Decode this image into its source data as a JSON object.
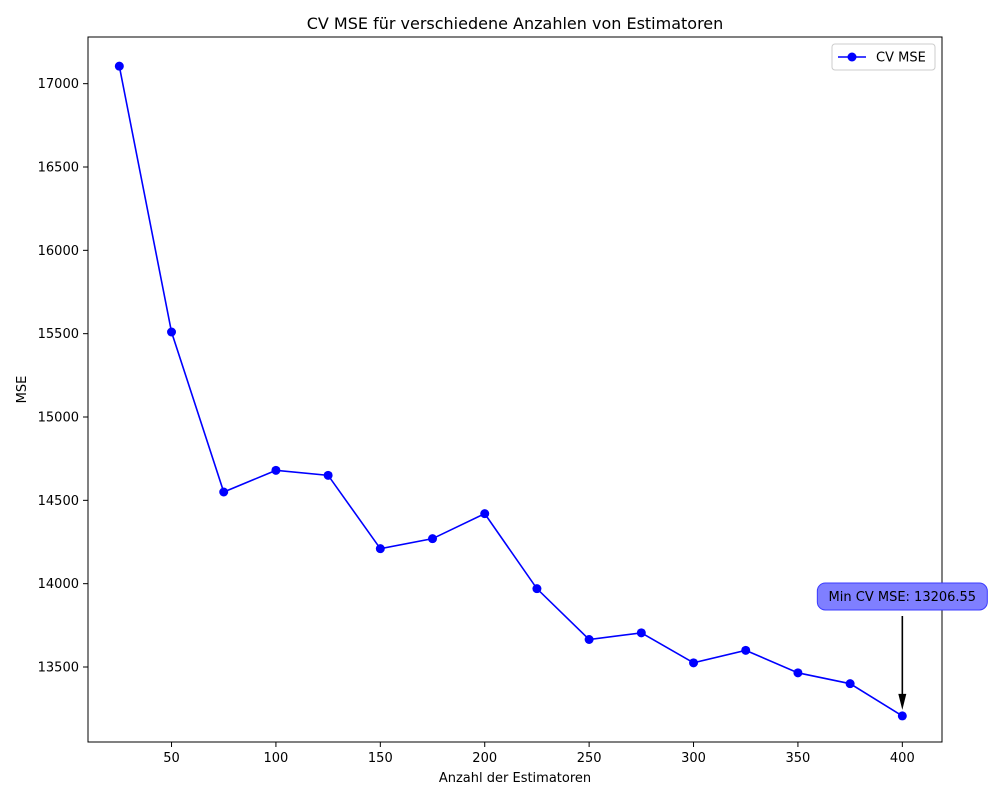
{
  "chart_data": {
    "type": "line",
    "title": "CV MSE für verschiedene Anzahlen von Estimatoren",
    "xlabel": "Anzahl der Estimatoren",
    "ylabel": "MSE",
    "xlim": [
      10,
      419
    ],
    "ylim": [
      13050,
      17280
    ],
    "xticks": [
      50,
      100,
      150,
      200,
      250,
      300,
      350,
      400
    ],
    "yticks": [
      13500,
      14000,
      14500,
      15000,
      15500,
      16000,
      16500,
      17000
    ],
    "grid": false,
    "legend_position": "top-right",
    "series": [
      {
        "name": "CV MSE",
        "color": "#0000ff",
        "marker": "circle",
        "x": [
          25,
          50,
          75,
          100,
          125,
          150,
          175,
          200,
          225,
          250,
          275,
          300,
          325,
          350,
          375,
          400
        ],
        "y": [
          17105,
          15510,
          14550,
          14680,
          14650,
          14210,
          14270,
          14420,
          13970,
          13665,
          13705,
          13525,
          13600,
          13465,
          13400,
          13206.55
        ]
      }
    ],
    "annotation": {
      "text": "Min CV MSE: 13206.55",
      "x": 400,
      "y": 13206.55,
      "box_color": "#7f7fff"
    }
  }
}
